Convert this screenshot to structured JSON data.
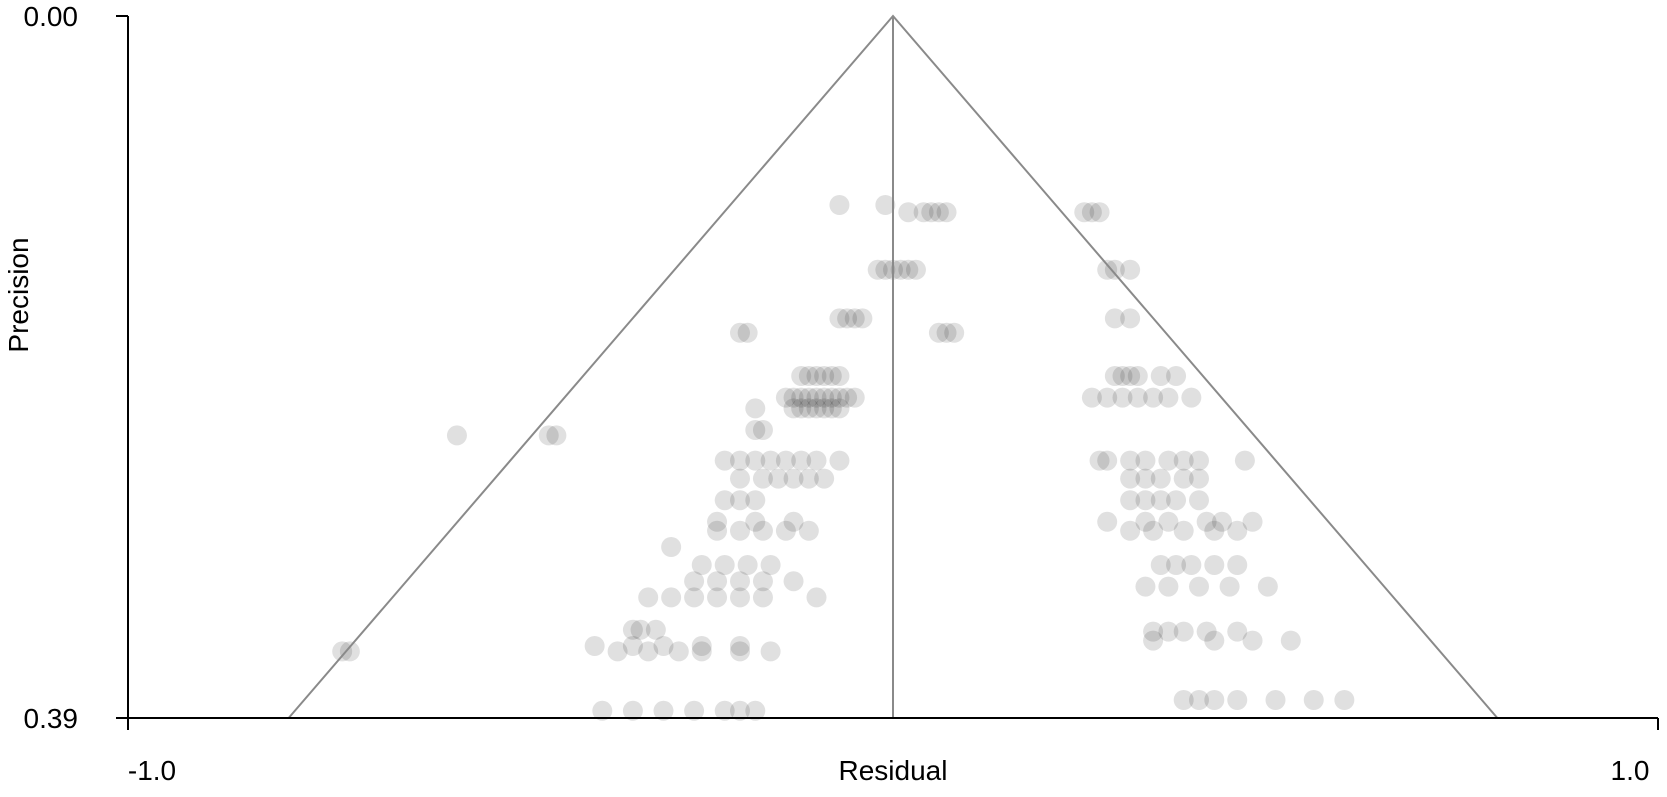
{
  "chart_data": {
    "type": "scatter",
    "title": "",
    "xlabel": "Residual",
    "ylabel": "Precision",
    "xlim": [
      -1.0,
      1.0
    ],
    "ylim": [
      0.0,
      0.39
    ],
    "y_inverted": true,
    "x_tick_labels": [
      "-1.0",
      "1.0"
    ],
    "y_tick_labels": [
      "0.00",
      "0.39"
    ],
    "funnel": {
      "apex": [
        0.0,
        0.0
      ],
      "base_left": [
        -0.79,
        0.39
      ],
      "base_right": [
        0.79,
        0.39
      ],
      "center_x": 0.0
    },
    "point_color": "#000000",
    "point_opacity": 0.12,
    "point_groups": [
      {
        "y": 0.105,
        "x": [
          -0.07,
          -0.01
        ]
      },
      {
        "y": 0.109,
        "x": [
          0.02,
          0.04,
          0.05,
          0.06,
          0.07
        ]
      },
      {
        "y": 0.109,
        "x": [
          0.25,
          0.26,
          0.27
        ]
      },
      {
        "y": 0.141,
        "x": [
          -0.02,
          -0.01,
          0.0,
          0.01,
          0.02,
          0.03
        ]
      },
      {
        "y": 0.141,
        "x": [
          0.28,
          0.29,
          0.31
        ]
      },
      {
        "y": 0.168,
        "x": [
          -0.07,
          -0.06,
          -0.05,
          -0.04
        ]
      },
      {
        "y": 0.168,
        "x": [
          0.29,
          0.31
        ]
      },
      {
        "y": 0.176,
        "x": [
          -0.2,
          -0.19
        ]
      },
      {
        "y": 0.176,
        "x": [
          0.06,
          0.07,
          0.08
        ]
      },
      {
        "y": 0.2,
        "x": [
          -0.12,
          -0.11,
          -0.1,
          -0.09,
          -0.08,
          -0.07
        ]
      },
      {
        "y": 0.2,
        "x": [
          0.29,
          0.3,
          0.31,
          0.32,
          0.35,
          0.37
        ]
      },
      {
        "y": 0.212,
        "x": [
          -0.14,
          -0.13,
          -0.12,
          -0.11,
          -0.1,
          -0.09,
          -0.08,
          -0.07,
          -0.06,
          -0.05
        ]
      },
      {
        "y": 0.212,
        "x": [
          0.26,
          0.28,
          0.3,
          0.32,
          0.34,
          0.36,
          0.39
        ]
      },
      {
        "y": 0.218,
        "x": [
          -0.18,
          -0.13,
          -0.12,
          -0.11,
          -0.1,
          -0.09,
          -0.08,
          -0.07
        ]
      },
      {
        "y": 0.23,
        "x": [
          -0.18,
          -0.17
        ]
      },
      {
        "y": 0.233,
        "x": [
          -0.57,
          -0.45,
          -0.44
        ]
      },
      {
        "y": 0.247,
        "x": [
          -0.22,
          -0.2,
          -0.18,
          -0.16,
          -0.14,
          -0.12,
          -0.1,
          -0.07
        ]
      },
      {
        "y": 0.247,
        "x": [
          0.27,
          0.28,
          0.31,
          0.33,
          0.36,
          0.38,
          0.4,
          0.46
        ]
      },
      {
        "y": 0.257,
        "x": [
          -0.2,
          -0.17,
          -0.15,
          -0.13,
          -0.11,
          -0.09
        ]
      },
      {
        "y": 0.257,
        "x": [
          0.31,
          0.33,
          0.35,
          0.38,
          0.4
        ]
      },
      {
        "y": 0.269,
        "x": [
          -0.22,
          -0.2,
          -0.18
        ]
      },
      {
        "y": 0.269,
        "x": [
          0.31,
          0.33,
          0.35,
          0.37,
          0.4
        ]
      },
      {
        "y": 0.281,
        "x": [
          -0.23,
          -0.18,
          -0.13
        ]
      },
      {
        "y": 0.281,
        "x": [
          0.28,
          0.33,
          0.36,
          0.41,
          0.43,
          0.47
        ]
      },
      {
        "y": 0.286,
        "x": [
          -0.23,
          -0.2,
          -0.17,
          -0.14,
          -0.11
        ]
      },
      {
        "y": 0.286,
        "x": [
          0.31,
          0.34,
          0.38,
          0.42,
          0.45
        ]
      },
      {
        "y": 0.295,
        "x": [
          -0.29
        ]
      },
      {
        "y": 0.305,
        "x": [
          -0.25,
          -0.22,
          -0.19,
          -0.16
        ]
      },
      {
        "y": 0.305,
        "x": [
          0.35,
          0.37,
          0.39,
          0.42,
          0.45
        ]
      },
      {
        "y": 0.314,
        "x": [
          -0.26,
          -0.23,
          -0.2,
          -0.17,
          -0.13
        ]
      },
      {
        "y": 0.317,
        "x": [
          0.33,
          0.36,
          0.4,
          0.44,
          0.49
        ]
      },
      {
        "y": 0.323,
        "x": [
          -0.32,
          -0.29,
          -0.26,
          -0.23,
          -0.2,
          -0.17,
          -0.1
        ]
      },
      {
        "y": 0.341,
        "x": [
          -0.34,
          -0.33,
          -0.31
        ]
      },
      {
        "y": 0.342,
        "x": [
          0.34,
          0.36,
          0.38,
          0.41,
          0.45
        ]
      },
      {
        "y": 0.347,
        "x": [
          0.34,
          0.42,
          0.47,
          0.52
        ]
      },
      {
        "y": 0.35,
        "x": [
          -0.39,
          -0.34,
          -0.3,
          -0.25,
          -0.2
        ]
      },
      {
        "y": 0.353,
        "x": [
          -0.36,
          -0.32,
          -0.28,
          -0.25,
          -0.2,
          -0.16
        ]
      },
      {
        "y": 0.353,
        "x": [
          -0.72,
          -0.71
        ]
      },
      {
        "y": 0.38,
        "x": [
          0.4,
          0.45,
          0.5,
          0.55,
          0.59
        ]
      },
      {
        "y": 0.38,
        "x": [
          0.38,
          0.42
        ]
      },
      {
        "y": 0.386,
        "x": [
          -0.38,
          -0.34,
          -0.3,
          -0.26,
          -0.22,
          -0.2,
          -0.18
        ]
      }
    ]
  }
}
